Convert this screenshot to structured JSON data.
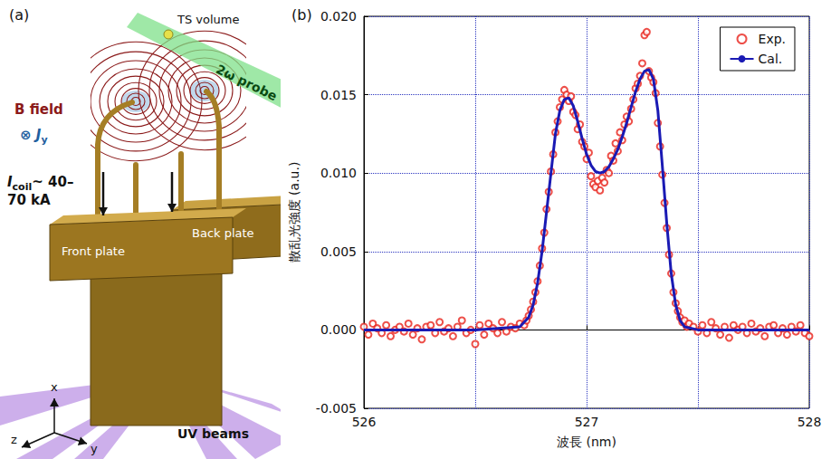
{
  "diagram": {
    "label": "(a)",
    "ts_volume": "TS volume",
    "b_field": "B field",
    "current": {
      "prefix": "⊗",
      "symbol": "J",
      "subscript": "y"
    },
    "probe": "2ω probe",
    "coil_current": {
      "symbol": "I",
      "subscript": "coil",
      "value_lines": [
        "~ 40–",
        "70 kA"
      ]
    },
    "front_plate": "Front plate",
    "back_plate": "Back plate",
    "uv_beams": "UV beams",
    "axes": {
      "x": "x",
      "y": "y",
      "z": "z"
    }
  },
  "chart_data": {
    "label": "(b)",
    "type": "scatter",
    "x_label": "波長 (nm)",
    "y_label": "散乱光強度 (a.u.)",
    "xlim": [
      526,
      528
    ],
    "xticks": [
      526,
      527,
      528
    ],
    "ylim": [
      -0.005,
      0.02
    ],
    "yticks": [
      -0.005,
      {
        "value": 0,
        "label": "0.000"
      },
      0.005,
      {
        "value": 0.01,
        "label": "0.010"
      },
      0.015,
      {
        "value": 0.02,
        "label": "0.020"
      }
    ],
    "grid": true,
    "legend": "upper right",
    "series": [
      {
        "name": "Exp.",
        "type": "scatter",
        "marker": "open_circle",
        "color": "#e8231c",
        "x": [
          526.0,
          526.02,
          526.04,
          526.06,
          526.08,
          526.1,
          526.12,
          526.14,
          526.16,
          526.18,
          526.2,
          526.22,
          526.24,
          526.26,
          526.28,
          526.3,
          526.32,
          526.34,
          526.36,
          526.38,
          526.4,
          526.42,
          526.44,
          526.46,
          526.48,
          526.5,
          526.52,
          526.54,
          526.56,
          526.58,
          526.6,
          526.62,
          526.64,
          526.66,
          526.68,
          526.7,
          526.72,
          526.73,
          526.74,
          526.75,
          526.76,
          526.77,
          526.78,
          526.79,
          526.8,
          526.81,
          526.82,
          526.83,
          526.84,
          526.85,
          526.86,
          526.87,
          526.88,
          526.89,
          526.9,
          526.91,
          526.92,
          526.93,
          526.94,
          526.95,
          526.96,
          526.97,
          526.98,
          526.99,
          527.0,
          527.01,
          527.02,
          527.03,
          527.04,
          527.05,
          527.06,
          527.07,
          527.08,
          527.09,
          527.1,
          527.11,
          527.12,
          527.13,
          527.14,
          527.15,
          527.16,
          527.17,
          527.18,
          527.19,
          527.2,
          527.21,
          527.22,
          527.23,
          527.24,
          527.25,
          527.26,
          527.27,
          527.28,
          527.29,
          527.3,
          527.31,
          527.32,
          527.33,
          527.34,
          527.35,
          527.36,
          527.37,
          527.38,
          527.39,
          527.4,
          527.41,
          527.42,
          527.43,
          527.44,
          527.45,
          527.46,
          527.48,
          527.5,
          527.52,
          527.54,
          527.56,
          527.58,
          527.6,
          527.62,
          527.64,
          527.66,
          527.68,
          527.7,
          527.72,
          527.74,
          527.76,
          527.78,
          527.8,
          527.82,
          527.84,
          527.86,
          527.88,
          527.9,
          527.92,
          527.94,
          527.96,
          527.98,
          528.0
        ],
        "values": [
          0.0002,
          -0.0003,
          0.0004,
          0.0001,
          -0.0002,
          0.0003,
          -0.0004,
          0.0,
          0.0002,
          -0.0001,
          0.0004,
          -0.0003,
          0.0001,
          -0.0006,
          0.0002,
          0.0003,
          -0.0002,
          0.0005,
          -0.0001,
          0.0001,
          -0.0004,
          0.0002,
          0.0006,
          -0.0002,
          0.0,
          -0.0009,
          0.0003,
          -0.0003,
          0.0004,
          0.0001,
          -0.0002,
          0.0005,
          -0.0001,
          0.0002,
          0.0001,
          0.0004,
          0.0003,
          0.0006,
          0.0009,
          0.0013,
          0.0018,
          0.0024,
          0.0031,
          0.0041,
          0.0052,
          0.0062,
          0.0077,
          0.0088,
          0.0101,
          0.0112,
          0.0126,
          0.0133,
          0.0142,
          0.0147,
          0.0153,
          0.015,
          0.0146,
          0.0149,
          0.0139,
          0.0137,
          0.0128,
          0.0131,
          0.012,
          0.0117,
          0.0109,
          0.0113,
          0.0098,
          0.0093,
          0.0091,
          0.0095,
          0.0089,
          0.0097,
          0.0094,
          0.0102,
          0.01,
          0.0111,
          0.0108,
          0.0119,
          0.0114,
          0.0126,
          0.0121,
          0.0131,
          0.0136,
          0.0133,
          0.0141,
          0.0147,
          0.0154,
          0.0157,
          0.0162,
          0.017,
          0.0188,
          0.019,
          0.0165,
          0.0161,
          0.0158,
          0.0151,
          0.0132,
          0.0117,
          0.0099,
          0.0081,
          0.0065,
          0.0048,
          0.0036,
          0.0024,
          0.0017,
          0.0012,
          0.0008,
          0.0005,
          0.0006,
          0.0002,
          0.0004,
          0.0002,
          -0.0001,
          0.0003,
          -0.0002,
          0.0005,
          0.0001,
          -0.0003,
          0.0002,
          -0.0005,
          0.0003,
          0.0,
          0.0002,
          -0.0002,
          0.0004,
          -0.0001,
          0.0001,
          -0.0004,
          0.0002,
          0.0003,
          -0.0002,
          0.0001,
          -0.0003,
          0.0002,
          -0.0001,
          0.0003,
          -0.0002,
          -0.0004
        ]
      },
      {
        "name": "Cal.",
        "type": "line",
        "line_style": "solid",
        "color": "#1a1ab4",
        "x": [
          526.0,
          526.5,
          526.7,
          526.74,
          526.76,
          526.78,
          526.8,
          526.82,
          526.84,
          526.86,
          526.88,
          526.9,
          526.92,
          526.94,
          526.96,
          526.98,
          527.0,
          527.02,
          527.04,
          527.06,
          527.08,
          527.1,
          527.12,
          527.14,
          527.16,
          527.18,
          527.2,
          527.22,
          527.24,
          527.26,
          527.28,
          527.3,
          527.32,
          527.34,
          527.36,
          527.38,
          527.4,
          527.42,
          527.44,
          527.5,
          528.0
        ],
        "values": [
          0,
          0,
          0.0002,
          0.0008,
          0.0016,
          0.003,
          0.005,
          0.0075,
          0.01,
          0.0125,
          0.014,
          0.0147,
          0.0148,
          0.0143,
          0.0133,
          0.0122,
          0.0112,
          0.0105,
          0.0101,
          0.01,
          0.0101,
          0.0104,
          0.0109,
          0.0115,
          0.0123,
          0.0132,
          0.0142,
          0.0152,
          0.016,
          0.0165,
          0.0166,
          0.016,
          0.014,
          0.0105,
          0.0068,
          0.0036,
          0.0016,
          0.0006,
          0.0002,
          0,
          0
        ]
      }
    ]
  }
}
